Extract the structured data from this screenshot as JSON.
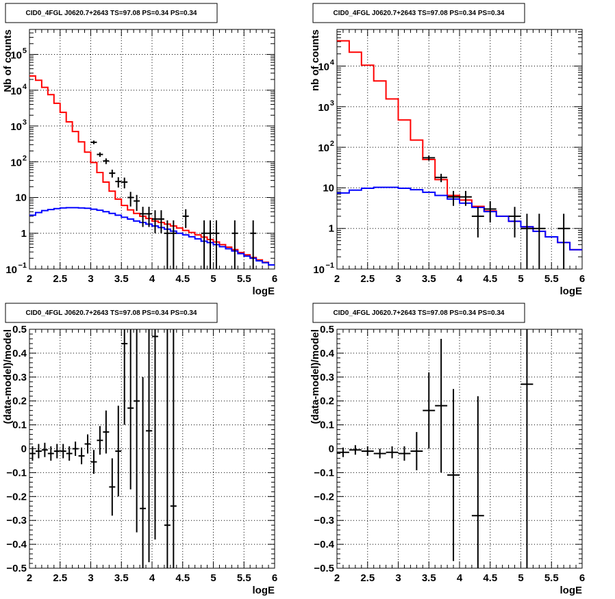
{
  "chart_data": [
    {
      "panel": "top-left",
      "type": "line",
      "title": "CID0_4FGL J0620.7+2643 TS=97.08 PS=0.34 PS=0.34",
      "xlabel": "logE",
      "ylabel": "Nb of counts",
      "xlim": [
        2,
        6
      ],
      "ylim": [
        0.1,
        500000
      ],
      "yscale": "log",
      "grid": true,
      "x_ticks": [
        "2",
        "2.5",
        "3",
        "3.5",
        "4",
        "4.5",
        "5",
        "5.5",
        "6"
      ],
      "y_ticks": [
        {
          "value": 0.1,
          "base": "10",
          "exp": "−1"
        },
        {
          "value": 1,
          "label": "1"
        },
        {
          "value": 10,
          "label": "10"
        },
        {
          "value": 100,
          "base": "10",
          "exp": "2"
        },
        {
          "value": 1000,
          "base": "10",
          "exp": "3"
        },
        {
          "value": 10000,
          "base": "10",
          "exp": "4"
        },
        {
          "value": 100000,
          "base": "10",
          "exp": "5"
        }
      ],
      "series": [
        {
          "style": "step",
          "color": "#ff0000",
          "edges": [
            2.0,
            2.1,
            2.2,
            2.3,
            2.4,
            2.5,
            2.6,
            2.7,
            2.8,
            2.9,
            3.0,
            3.1,
            3.2,
            3.3,
            3.4,
            3.5,
            3.6,
            3.7,
            3.8,
            3.9,
            4.0,
            4.1,
            4.2,
            4.3,
            4.4,
            4.5,
            4.6,
            4.7,
            4.8,
            4.9,
            5.0,
            5.1,
            5.2,
            5.3,
            5.4,
            5.5,
            5.6,
            5.7,
            5.8,
            5.9,
            6.0
          ],
          "values": [
            25000,
            19000,
            12000,
            7500,
            4300,
            2400,
            1300,
            700,
            360,
            185,
            95,
            50,
            27,
            15,
            9,
            6,
            4.5,
            3.6,
            3.0,
            2.6,
            2.2,
            2.0,
            1.8,
            1.6,
            1.4,
            1.2,
            1.05,
            0.9,
            0.78,
            0.67,
            0.57,
            0.48,
            0.41,
            0.35,
            0.29,
            0.25,
            0.21,
            0.18,
            0.155,
            0.13
          ]
        },
        {
          "style": "step",
          "color": "#0000ff",
          "edges": [
            2.0,
            2.1,
            2.2,
            2.3,
            2.4,
            2.5,
            2.6,
            2.7,
            2.8,
            2.9,
            3.0,
            3.1,
            3.2,
            3.3,
            3.4,
            3.5,
            3.6,
            3.7,
            3.8,
            3.9,
            4.0,
            4.1,
            4.2,
            4.3,
            4.4,
            4.5,
            4.6,
            4.7,
            4.8,
            4.9,
            5.0,
            5.1,
            5.2,
            5.3,
            5.4,
            5.5,
            5.6,
            5.7,
            5.8,
            5.9,
            6.0
          ],
          "values": [
            3.2,
            3.8,
            4.3,
            4.6,
            4.9,
            5.1,
            5.2,
            5.2,
            5.1,
            5.0,
            4.7,
            4.4,
            4.0,
            3.6,
            3.2,
            2.8,
            2.5,
            2.2,
            2.0,
            1.8,
            1.6,
            1.45,
            1.3,
            1.15,
            1.0,
            0.9,
            0.8,
            0.7,
            0.6,
            0.55,
            0.48,
            0.42,
            0.37,
            0.32,
            0.27,
            0.23,
            0.2,
            0.17,
            0.15,
            0.13
          ]
        },
        {
          "style": "errorbar",
          "color": "#000000",
          "x": [
            3.05,
            3.15,
            3.25,
            3.35,
            3.45,
            3.55,
            3.65,
            3.75,
            3.85,
            3.95,
            4.05,
            4.15,
            4.25,
            4.35,
            4.55,
            4.85,
            4.95,
            5.05,
            5.35,
            5.65
          ],
          "y": [
            350,
            160,
            105,
            48,
            28,
            27,
            10,
            8,
            3.5,
            3.5,
            2.5,
            2.5,
            1,
            1,
            3,
            1,
            1,
            1,
            1,
            1
          ],
          "xerr": 0.05,
          "ylo": [
            310,
            137,
            86,
            36,
            19,
            18,
            5.6,
            4.2,
            1.5,
            1.5,
            1,
            1,
            0.1,
            0.1,
            1.4,
            0.1,
            0.1,
            0.1,
            0.1,
            0.1
          ],
          "yhi": [
            390,
            183,
            124,
            60,
            37,
            36,
            14.4,
            11.8,
            5.5,
            5.5,
            4.4,
            4.4,
            2.3,
            2.3,
            4.7,
            2.3,
            2.3,
            2.3,
            2.3,
            2.3
          ]
        }
      ]
    },
    {
      "panel": "top-right",
      "type": "line",
      "title": "CID0_4FGL J0620.7+2643 TS=97.08 PS=0.34 PS=0.34",
      "xlabel": "logE",
      "ylabel": "nb of counts",
      "xlim": [
        2,
        6
      ],
      "ylim": [
        0.1,
        80000
      ],
      "yscale": "log",
      "grid": true,
      "x_ticks": [
        "2",
        "2.5",
        "3",
        "3.5",
        "4",
        "4.5",
        "5",
        "5.5",
        "6"
      ],
      "y_ticks": [
        {
          "value": 0.1,
          "base": "10",
          "exp": "−1"
        },
        {
          "value": 1,
          "label": "1"
        },
        {
          "value": 10,
          "label": "10"
        },
        {
          "value": 100,
          "base": "10",
          "exp": "2"
        },
        {
          "value": 1000,
          "base": "10",
          "exp": "3"
        },
        {
          "value": 10000,
          "base": "10",
          "exp": "4"
        }
      ],
      "series": [
        {
          "style": "step",
          "color": "#ff0000",
          "edges": [
            2.0,
            2.2,
            2.4,
            2.6,
            2.8,
            3.0,
            3.2,
            3.4,
            3.6,
            3.8,
            4.0,
            4.2,
            4.4,
            4.6,
            4.8,
            5.0,
            5.2,
            5.4,
            5.6,
            5.8,
            6.0
          ],
          "values": [
            42000,
            22000,
            10500,
            4300,
            1550,
            470,
            150,
            50,
            16,
            6.5,
            5.0,
            3.5,
            2.7,
            2.0,
            1.5,
            1.1,
            0.85,
            0.62,
            0.45,
            0.3
          ]
        },
        {
          "style": "step",
          "color": "#0000ff",
          "edges": [
            2.0,
            2.2,
            2.4,
            2.6,
            2.8,
            3.0,
            3.2,
            3.4,
            3.6,
            3.8,
            4.0,
            4.2,
            4.4,
            4.6,
            4.8,
            5.0,
            5.2,
            5.4,
            5.6,
            5.8,
            6.0
          ],
          "values": [
            7.5,
            8.8,
            9.8,
            10.3,
            10.3,
            9.8,
            9.0,
            7.8,
            6.5,
            5.3,
            4.2,
            3.3,
            2.6,
            2.0,
            1.5,
            1.1,
            0.85,
            0.62,
            0.45,
            0.3
          ]
        },
        {
          "style": "errorbar",
          "color": "#000000",
          "x": [
            3.5,
            3.7,
            3.9,
            4.1,
            4.3,
            4.5,
            4.9,
            5.1,
            5.3,
            5.7
          ],
          "y": [
            55,
            18,
            6,
            6,
            2,
            3,
            2,
            1,
            1,
            1
          ],
          "xerr": 0.1,
          "ylo": [
            47,
            13.8,
            3.6,
            3.6,
            0.6,
            1.4,
            0.6,
            0.1,
            0.1,
            0.1
          ],
          "yhi": [
            63,
            22.2,
            8.4,
            8.4,
            3.4,
            4.7,
            3.4,
            2.3,
            2.3,
            2.3
          ]
        }
      ]
    },
    {
      "panel": "bottom-left",
      "type": "scatter",
      "title": "CID0_4FGL J0620.7+2643 TS=97.08 PS=0.34 PS=0.34",
      "xlabel": "logE",
      "ylabel": "(data-model)/model",
      "xlim": [
        2,
        6
      ],
      "ylim": [
        -0.5,
        0.5
      ],
      "grid": true,
      "x_ticks": [
        "2",
        "2.5",
        "3",
        "3.5",
        "4",
        "4.5",
        "5",
        "5.5",
        "6"
      ],
      "y_ticks": [
        "−0.5",
        "−0.4",
        "−0.3",
        "−0.2",
        "−0.1",
        "0",
        "0.1",
        "0.2",
        "0.3",
        "0.4",
        "0.5"
      ],
      "series": [
        {
          "style": "errorbar",
          "color": "#000000",
          "x": [
            2.05,
            2.15,
            2.25,
            2.35,
            2.45,
            2.55,
            2.65,
            2.75,
            2.85,
            2.95,
            3.05,
            3.15,
            3.25,
            3.35,
            3.45,
            3.55,
            3.65,
            3.75,
            3.85,
            3.95,
            4.05,
            4.25,
            4.35
          ],
          "y": [
            -0.02,
            -0.01,
            -0.005,
            -0.02,
            -0.01,
            -0.01,
            -0.02,
            0.0,
            -0.03,
            0.02,
            -0.055,
            0.035,
            0.07,
            -0.16,
            -0.01,
            0.44,
            0.17,
            0.2,
            -0.25,
            0.075,
            0.47,
            -0.32,
            -0.24
          ],
          "xerr": 0.05,
          "yerr": [
            0.03,
            0.03,
            0.03,
            0.03,
            0.03,
            0.03,
            0.03,
            0.03,
            0.035,
            0.04,
            0.05,
            0.06,
            0.09,
            0.12,
            0.19,
            0.34,
            0.34,
            0.55,
            0.55,
            0.55,
            0.85,
            1.0,
            1.0
          ]
        }
      ]
    },
    {
      "panel": "bottom-right",
      "type": "scatter",
      "title": "CID0_4FGL J0620.7+2643 TS=97.08 PS=0.34 PS=0.34",
      "xlabel": "logE",
      "ylabel": "(data-model)/model",
      "xlim": [
        2,
        6
      ],
      "ylim": [
        -0.5,
        0.5
      ],
      "grid": true,
      "x_ticks": [
        "2",
        "2.5",
        "3",
        "3.5",
        "4",
        "4.5",
        "5",
        "5.5",
        "6"
      ],
      "y_ticks": [
        "−0.5",
        "−0.4",
        "−0.3",
        "−0.2",
        "−0.1",
        "0",
        "0.1",
        "0.2",
        "0.3",
        "0.4",
        "0.5"
      ],
      "series": [
        {
          "style": "errorbar",
          "color": "#000000",
          "x": [
            2.1,
            2.3,
            2.5,
            2.7,
            2.9,
            3.1,
            3.3,
            3.5,
            3.7,
            3.9,
            4.3,
            5.1
          ],
          "y": [
            -0.015,
            -0.005,
            -0.01,
            -0.02,
            -0.015,
            -0.02,
            -0.01,
            0.16,
            0.18,
            -0.11,
            -0.28,
            0.27
          ],
          "xerr": 0.1,
          "yerr": [
            0.02,
            0.02,
            0.02,
            0.02,
            0.025,
            0.03,
            0.08,
            0.16,
            0.28,
            0.36,
            0.5,
            1.0
          ]
        }
      ]
    }
  ]
}
